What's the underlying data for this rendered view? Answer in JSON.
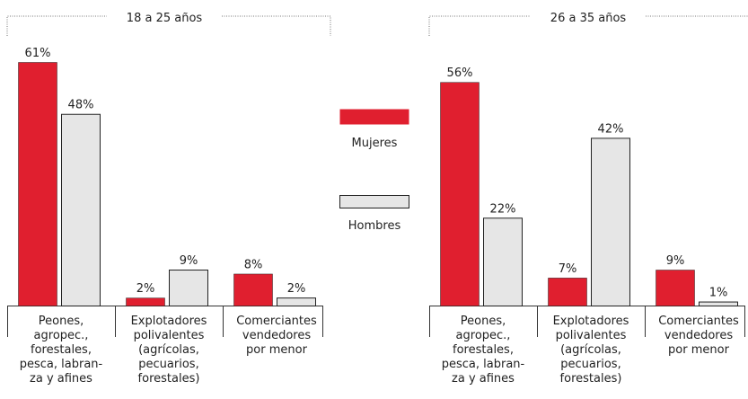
{
  "chart_data": [
    {
      "type": "bar",
      "title": "18 a 25 años",
      "categories": [
        "Peones,\nagropec.,\nforestales,\npesca, labran-\nza y afines",
        "Explotadores\npolivalentes\n(agrícolas,\npecuarios,\nforestales)",
        "Comerciantes\nvendedores\npor menor"
      ],
      "series": [
        {
          "name": "Mujeres",
          "color": "#e01f2f",
          "values": [
            61,
            2,
            8
          ],
          "value_labels": [
            "61%",
            "2%",
            "8%"
          ]
        },
        {
          "name": "Hombres",
          "color": "#e6e6e6",
          "values": [
            48,
            9,
            2
          ],
          "value_labels": [
            "48%",
            "9%",
            "2%"
          ]
        }
      ],
      "ylim": [
        0,
        70
      ]
    },
    {
      "type": "bar",
      "title": "26 a 35 años",
      "categories": [
        "Peones,\nagropec.,\nforestales,\npesca, labran-\nza y afines",
        "Explotadores\npolivalentes\n(agrícolas,\npecuarios,\nforestales)",
        "Comerciantes\nvendedores\npor menor"
      ],
      "series": [
        {
          "name": "Mujeres",
          "color": "#e01f2f",
          "values": [
            56,
            7,
            9
          ],
          "value_labels": [
            "56%",
            "7%",
            "9%"
          ]
        },
        {
          "name": "Hombres",
          "color": "#e6e6e6",
          "values": [
            22,
            42,
            1
          ],
          "value_labels": [
            "22%",
            "42%",
            "1%"
          ]
        }
      ],
      "ylim": [
        0,
        70
      ]
    }
  ]
}
